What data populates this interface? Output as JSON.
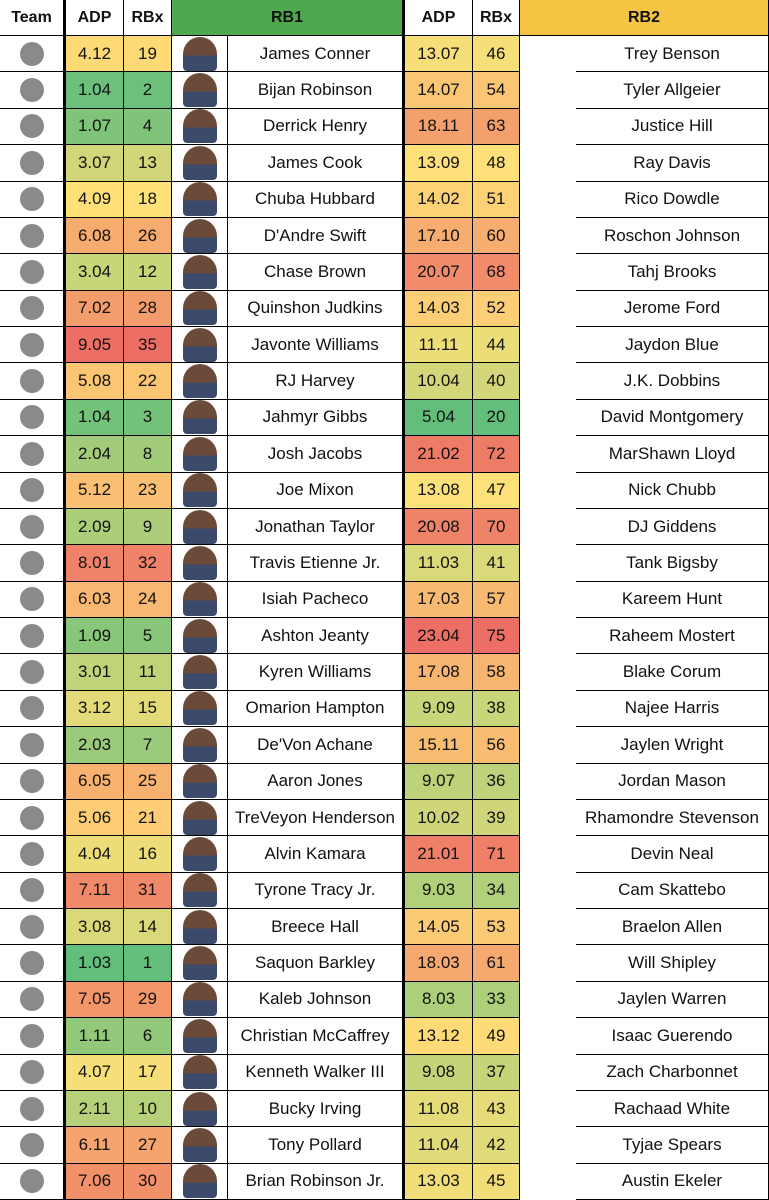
{
  "header": {
    "columns": [
      "Team",
      "ADP",
      "RBx",
      "RB1",
      "ADP",
      "RBx",
      "RB2"
    ]
  },
  "table": {
    "rows": [
      [
        "4.12",
        19,
        "James Conner",
        "13.07",
        46,
        "Trey Benson"
      ],
      [
        "1.04",
        2,
        "Bijan Robinson",
        "14.07",
        54,
        "Tyler Allgeier"
      ],
      [
        "1.07",
        4,
        "Derrick Henry",
        "18.11",
        63,
        "Justice Hill"
      ],
      [
        "3.07",
        13,
        "James Cook",
        "13.09",
        48,
        "Ray Davis"
      ],
      [
        "4.09",
        18,
        "Chuba Hubbard",
        "14.02",
        51,
        "Rico Dowdle"
      ],
      [
        "6.08",
        26,
        "D'Andre Swift",
        "17.10",
        60,
        "Roschon Johnson"
      ],
      [
        "3.04",
        12,
        "Chase Brown",
        "20.07",
        68,
        "Tahj Brooks"
      ],
      [
        "7.02",
        28,
        "Quinshon Judkins",
        "14.03",
        52,
        "Jerome Ford"
      ],
      [
        "9.05",
        35,
        "Javonte Williams",
        "11.11",
        44,
        "Jaydon Blue"
      ],
      [
        "5.08",
        22,
        "RJ Harvey",
        "10.04",
        40,
        "J.K. Dobbins"
      ],
      [
        "1.04",
        3,
        "Jahmyr Gibbs",
        "5.04",
        20,
        "David Montgomery"
      ],
      [
        "2.04",
        8,
        "Josh Jacobs",
        "21.02",
        72,
        "MarShawn Lloyd"
      ],
      [
        "5.12",
        23,
        "Joe Mixon",
        "13.08",
        47,
        "Nick Chubb"
      ],
      [
        "2.09",
        9,
        "Jonathan Taylor",
        "20.08",
        70,
        "DJ Giddens"
      ],
      [
        "8.01",
        32,
        "Travis Etienne Jr.",
        "11.03",
        41,
        "Tank Bigsby"
      ],
      [
        "6.03",
        24,
        "Isiah Pacheco",
        "17.03",
        57,
        "Kareem Hunt"
      ],
      [
        "1.09",
        5,
        "Ashton Jeanty",
        "23.04",
        75,
        "Raheem Mostert"
      ],
      [
        "3.01",
        11,
        "Kyren Williams",
        "17.08",
        58,
        "Blake Corum"
      ],
      [
        "3.12",
        15,
        "Omarion Hampton",
        "9.09",
        38,
        "Najee Harris"
      ],
      [
        "2.03",
        7,
        "De'Von Achane",
        "15.11",
        56,
        "Jaylen Wright"
      ],
      [
        "6.05",
        25,
        "Aaron Jones",
        "9.07",
        36,
        "Jordan Mason"
      ],
      [
        "5.06",
        21,
        "TreVeyon Henderson",
        "10.02",
        39,
        "Rhamondre Stevenson"
      ],
      [
        "4.04",
        16,
        "Alvin Kamara",
        "21.01",
        71,
        "Devin Neal"
      ],
      [
        "7.11",
        31,
        "Tyrone Tracy Jr.",
        "9.03",
        34,
        "Cam Skattebo"
      ],
      [
        "3.08",
        14,
        "Breece Hall",
        "14.05",
        53,
        "Braelon Allen"
      ],
      [
        "1.03",
        1,
        "Saquon Barkley",
        "18.03",
        61,
        "Will Shipley"
      ],
      [
        "7.05",
        29,
        "Kaleb Johnson",
        "8.03",
        33,
        "Jaylen Warren"
      ],
      [
        "1.11",
        6,
        "Christian McCaffrey",
        "13.12",
        49,
        "Isaac Guerendo"
      ],
      [
        "4.07",
        17,
        "Kenneth Walker III",
        "9.08",
        37,
        "Zach Charbonnet"
      ],
      [
        "2.11",
        10,
        "Bucky Irving",
        "11.08",
        43,
        "Rachaad White"
      ],
      [
        "6.11",
        27,
        "Tony Pollard",
        "11.04",
        42,
        "Tyjae Spears"
      ],
      [
        "7.06",
        30,
        "Brian Robinson Jr.",
        "13.03",
        45,
        "Austin Ekeler"
      ]
    ]
  }
}
